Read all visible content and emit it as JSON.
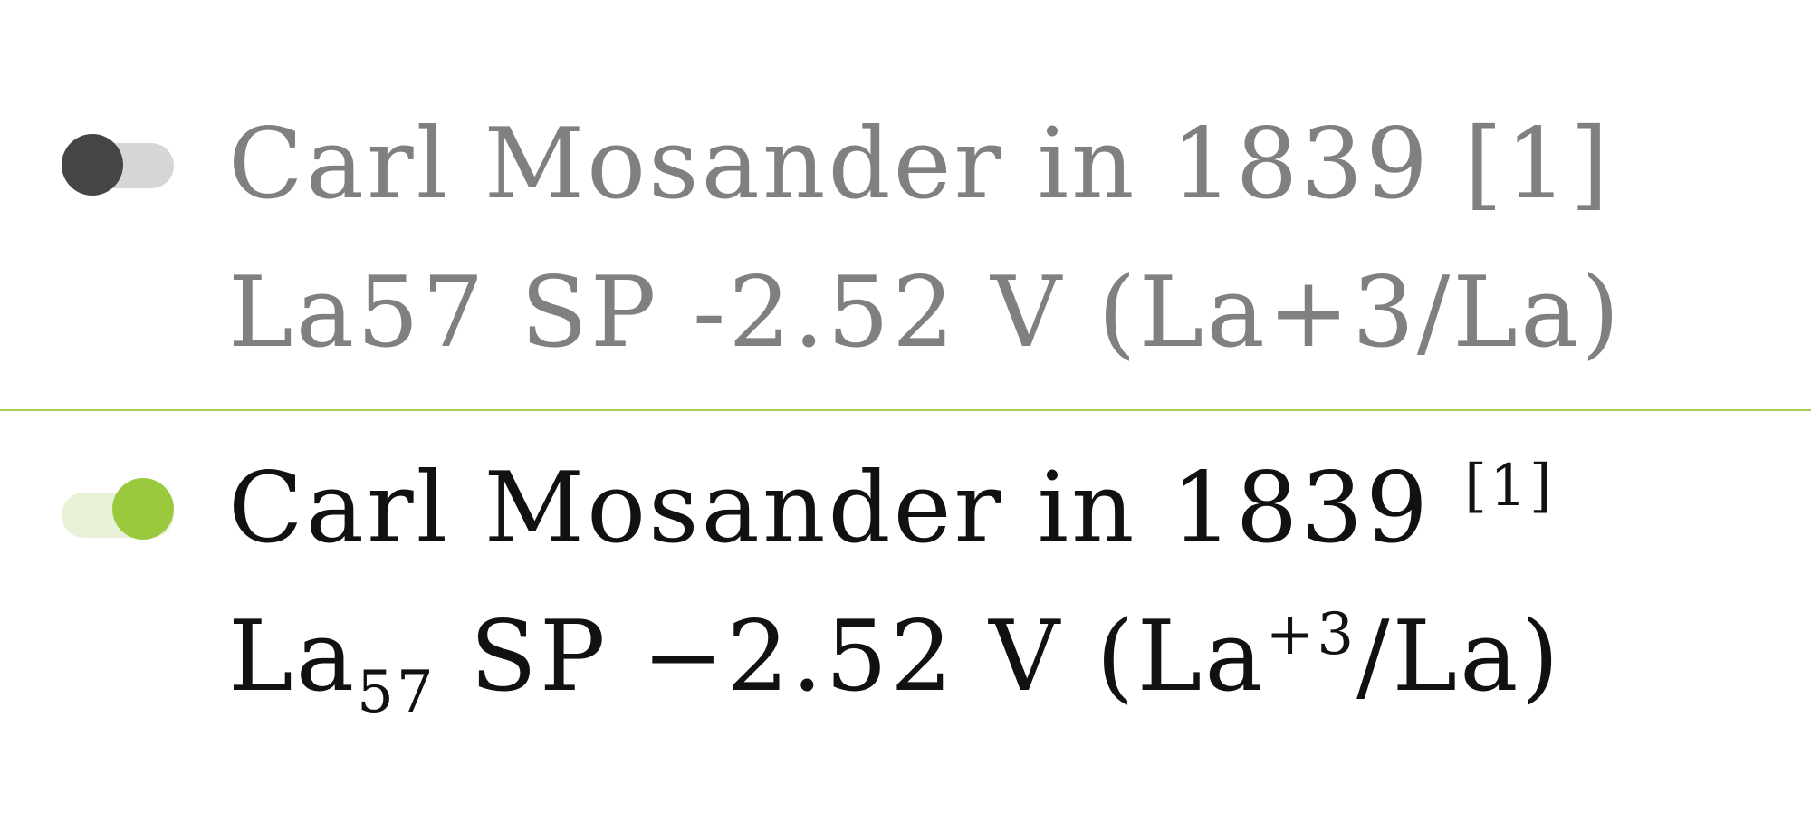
{
  "toggles": {
    "off_color_knob": "#454545",
    "off_color_track": "#d6d6d6",
    "on_color_knob": "#9bc93e",
    "on_color_track": "#e8f2d9"
  },
  "divider_color": "#a6cf56",
  "plain": {
    "line1": "Carl Mosander in 1839 [1]",
    "line2": "La57 SP -2.52 V (La+3/La)"
  },
  "formatted": {
    "line1_text": "Carl Mosander in 1839 ",
    "line1_sup": "[1]",
    "line2_la": "La",
    "line2_sub": "57",
    "line2_mid": " SP −2.52 V (La",
    "line2_sup": "+3",
    "line2_end": "/La)"
  }
}
